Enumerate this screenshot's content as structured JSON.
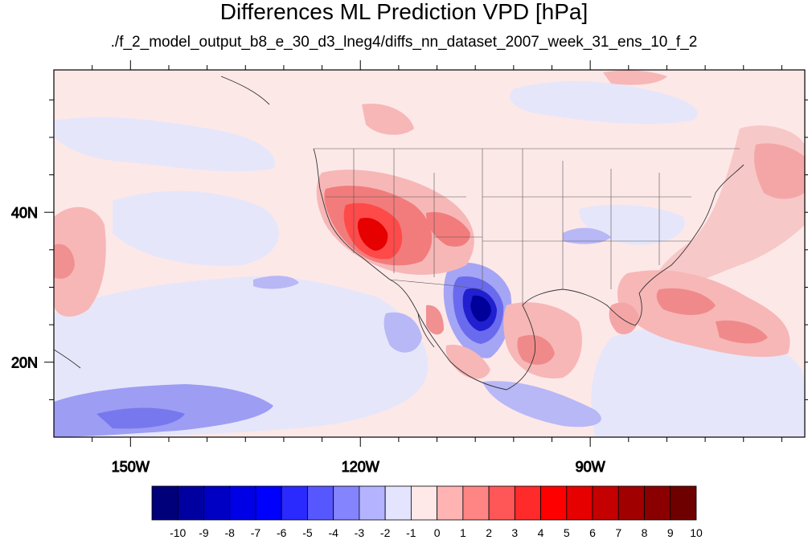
{
  "title": "Differences ML Prediction VPD [hPa]",
  "subtitle": "./f_2_model_output_b8_e_30_d3_lneg4/diffs_nn_dataset_2007_week_31_ens_10_f_2",
  "map": {
    "lon_range": [
      -160,
      -62
    ],
    "lat_range": [
      10,
      59
    ],
    "lon_ticks": [
      {
        "value": -150,
        "label": "150W"
      },
      {
        "value": -120,
        "label": "120W"
      },
      {
        "value": -90,
        "label": "90W"
      }
    ],
    "lat_ticks": [
      {
        "value": 40,
        "label": "40N"
      },
      {
        "value": 20,
        "label": "20N"
      }
    ],
    "background_color": "#fde8e8"
  },
  "colorbar": {
    "labels": [
      "-10",
      "-9",
      "-8",
      "-7",
      "-6",
      "-5",
      "-4",
      "-3",
      "-2",
      "-1",
      "0",
      "1",
      "2",
      "3",
      "4",
      "5",
      "6",
      "7",
      "8",
      "9",
      "10"
    ],
    "colors": [
      "#00007a",
      "#0000a0",
      "#0000c4",
      "#0000e6",
      "#0000ff",
      "#2a2aff",
      "#5757ff",
      "#8484ff",
      "#b3b3ff",
      "#e4e4ff",
      "#ffe8e8",
      "#ffb3b3",
      "#ff8484",
      "#ff5757",
      "#ff2a2a",
      "#ff0000",
      "#e60000",
      "#c40000",
      "#a00000",
      "#8a0000",
      "#6e0000"
    ]
  }
}
